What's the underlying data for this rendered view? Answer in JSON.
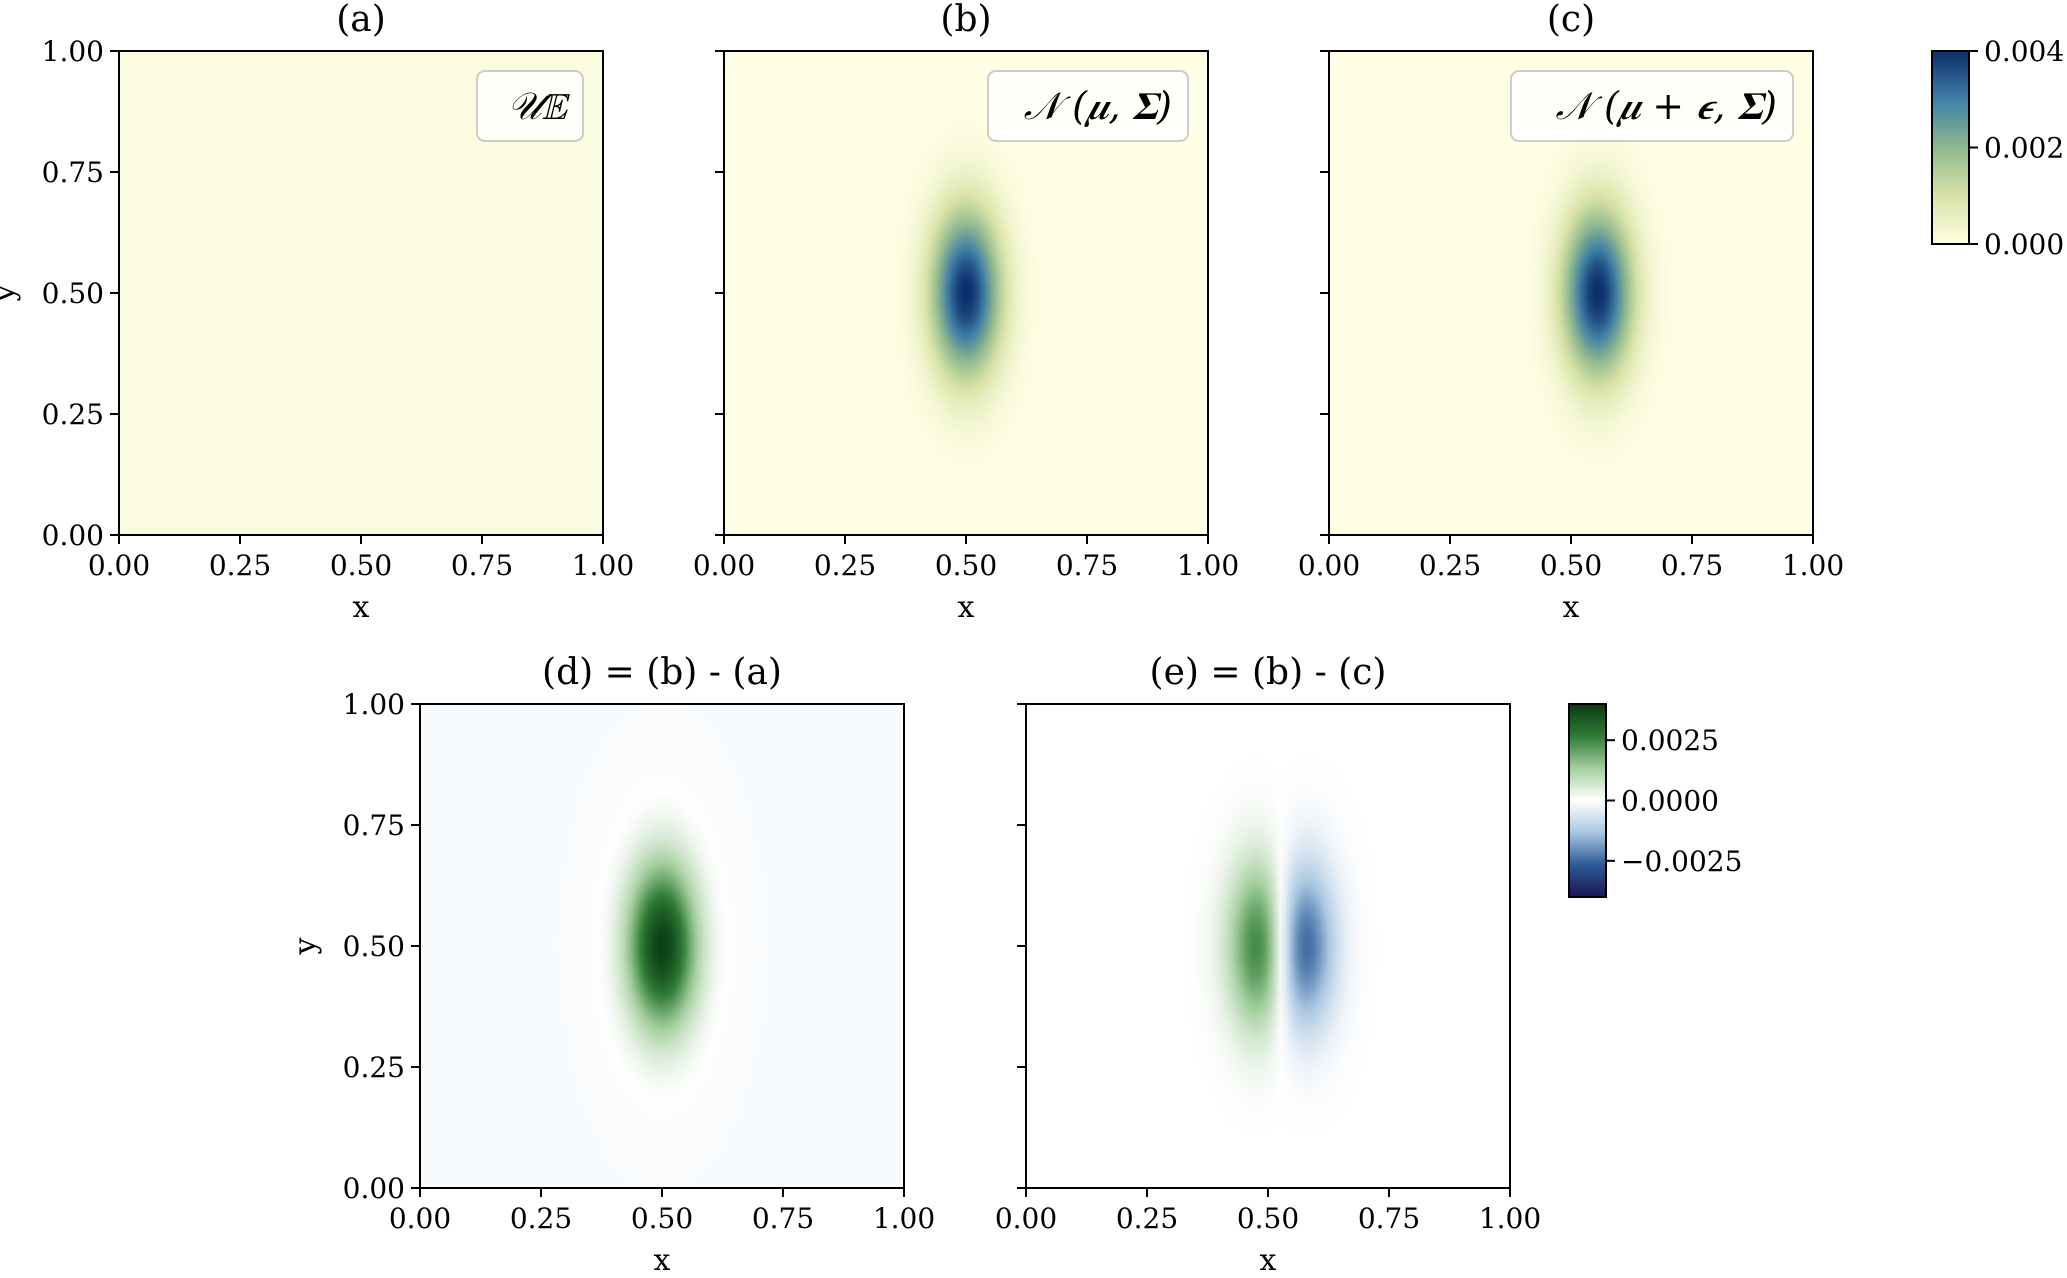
{
  "chart_data": [
    {
      "type": "heatmap",
      "title": "(a)",
      "xlabel": "x",
      "ylabel": "y",
      "xlim": [
        0,
        1
      ],
      "ylim": [
        0,
        1
      ],
      "xticks": [
        "0.00",
        "0.25",
        "0.50",
        "0.75",
        "1.00"
      ],
      "yticks": [
        "0.00",
        "0.25",
        "0.50",
        "0.75",
        "1.00"
      ],
      "legend": "𝒰𝔼",
      "legend_position": "top-right",
      "distribution": "uniform",
      "value": 0.0001
    },
    {
      "type": "heatmap",
      "title": "(b)",
      "xlabel": "x",
      "ylabel": "",
      "xlim": [
        0,
        1
      ],
      "ylim": [
        0,
        1
      ],
      "xticks": [
        "0.00",
        "0.25",
        "0.50",
        "0.75",
        "1.00"
      ],
      "yticks": [],
      "legend": "𝒩 (𝝁, 𝚺)",
      "legend_position": "top-right",
      "distribution": "gaussian",
      "mean": [
        0.5,
        0.5
      ],
      "sigma": [
        0.05,
        0.12
      ],
      "peak": 0.004
    },
    {
      "type": "heatmap",
      "title": "(c)",
      "xlabel": "x",
      "ylabel": "",
      "xlim": [
        0,
        1
      ],
      "ylim": [
        0,
        1
      ],
      "xticks": [
        "0.00",
        "0.25",
        "0.50",
        "0.75",
        "1.00"
      ],
      "yticks": [],
      "legend": "𝒩 (𝝁 + 𝝐, 𝚺)",
      "legend_position": "top-right",
      "distribution": "gaussian",
      "mean": [
        0.555,
        0.5
      ],
      "sigma": [
        0.05,
        0.12
      ],
      "peak": 0.004
    },
    {
      "type": "heatmap",
      "title": "(d) = (b) - (a)",
      "xlabel": "x",
      "ylabel": "y",
      "xlim": [
        0,
        1
      ],
      "ylim": [
        0,
        1
      ],
      "xticks": [
        "0.00",
        "0.25",
        "0.50",
        "0.75",
        "1.00"
      ],
      "yticks": [
        "0.00",
        "0.25",
        "0.50",
        "0.75",
        "1.00"
      ],
      "distribution": "difference",
      "minuend": 1,
      "subtrahend": 0
    },
    {
      "type": "heatmap",
      "title": "(e) = (b) - (c)",
      "xlabel": "x",
      "ylabel": "",
      "xlim": [
        0,
        1
      ],
      "ylim": [
        0,
        1
      ],
      "xticks": [
        "0.00",
        "0.25",
        "0.50",
        "0.75",
        "1.00"
      ],
      "yticks": [],
      "distribution": "difference",
      "minuend": 1,
      "subtrahend": 2
    }
  ],
  "colorbars": [
    {
      "range": [
        0,
        0.004
      ],
      "ticks": [
        {
          "value": 0.004,
          "label": "0.004"
        },
        {
          "value": 0.002,
          "label": "0.002"
        },
        {
          "value": 0.0,
          "label": "0.000"
        }
      ],
      "colors": [
        "#ffffe5",
        "#d8e3a6",
        "#8fb88e",
        "#3f7fa6",
        "#0b2d6b"
      ]
    },
    {
      "range": [
        -0.004,
        0.004
      ],
      "ticks": [
        {
          "value": 0.0025,
          "label": "0.0025"
        },
        {
          "value": 0.0,
          "label": "0.0000"
        },
        {
          "value": -0.0025,
          "label": "−0.0025"
        }
      ],
      "colors": [
        "#1a1752",
        "#2d5a98",
        "#a8c6e0",
        "#ffffff",
        "#a4cf9e",
        "#2f7c35",
        "#0a3a12"
      ]
    }
  ]
}
